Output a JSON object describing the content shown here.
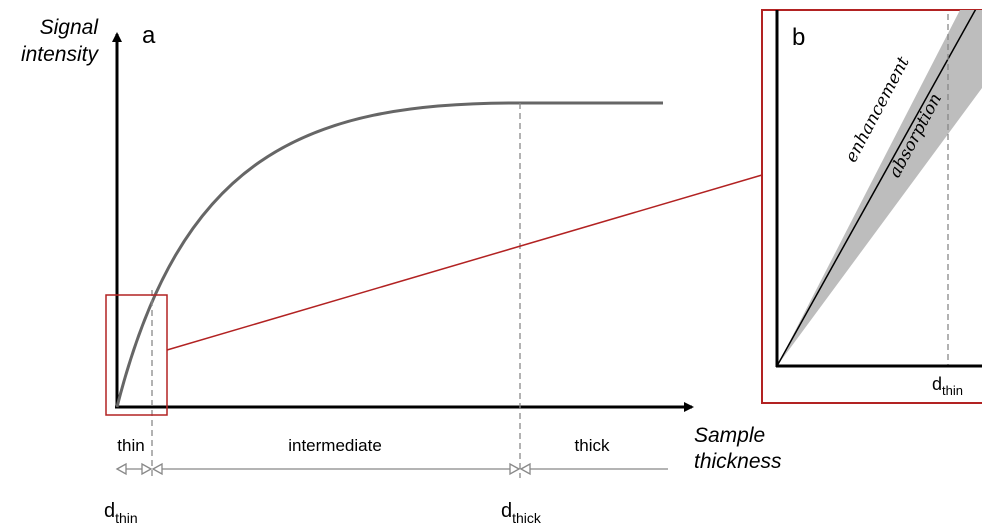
{
  "panel_a": {
    "label": "a",
    "y_axis_label_line1": "Signal",
    "y_axis_label_line2": "intensity",
    "x_axis_label_line1": "Sample",
    "x_axis_label_line2": "thickness",
    "regions": {
      "thin": "thin",
      "intermediate": "intermediate",
      "thick": "thick"
    },
    "markers": [
      {
        "base": "d",
        "sub": "thin"
      },
      {
        "base": "d",
        "sub": "thick"
      }
    ]
  },
  "panel_b": {
    "label": "b",
    "upper_band": "enhancement",
    "lower_band": "absorption",
    "marker": {
      "base": "d",
      "sub": "thin"
    }
  },
  "colors": {
    "axis": "#000000",
    "curve": "#666666",
    "zoom_box": "#b22222",
    "guide": "#888888",
    "band": "#bdbdbd"
  }
}
